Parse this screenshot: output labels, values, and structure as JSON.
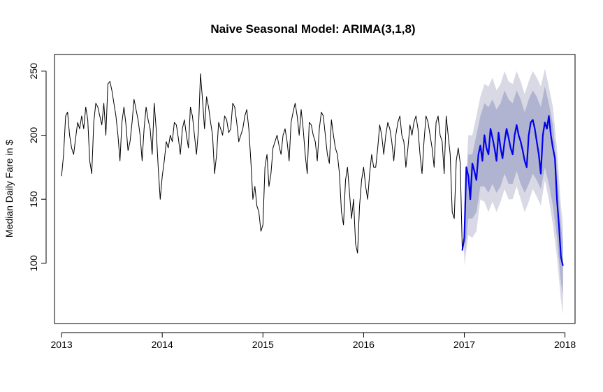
{
  "chart_data": {
    "type": "line",
    "title": "Naive Seasonal Model: ARIMA(3,1,8)",
    "xlabel": "",
    "ylabel": "Median Daily Fare in $",
    "xlim": [
      2012.93,
      2018.1
    ],
    "ylim": [
      53,
      263
    ],
    "x_ticks": [
      2013,
      2014,
      2015,
      2016,
      2017,
      2018
    ],
    "x_tick_labels": [
      "2013",
      "2014",
      "2015",
      "2016",
      "2017",
      "2018"
    ],
    "y_ticks": [
      100,
      150,
      200,
      250
    ],
    "y_tick_labels": [
      "100",
      "150",
      "200",
      "250"
    ],
    "grid": false,
    "legend": "none",
    "colors": {
      "history": "#000000",
      "forecast": "#0000ee",
      "band80": "#b0b4d0",
      "band95": "#d8d9e4"
    },
    "series": [
      {
        "kind": "history",
        "x": [
          2013.0,
          2013.02,
          2013.04,
          2013.06,
          2013.08,
          2013.1,
          2013.12,
          2013.14,
          2013.16,
          2013.18,
          2013.2,
          2013.22,
          2013.24,
          2013.26,
          2013.28,
          2013.3,
          2013.32,
          2013.34,
          2013.36,
          2013.38,
          2013.4,
          2013.42,
          2013.44,
          2013.46,
          2013.48,
          2013.5,
          2013.52,
          2013.54,
          2013.56,
          2013.58,
          2013.6,
          2013.62,
          2013.64,
          2013.66,
          2013.68,
          2013.7,
          2013.72,
          2013.74,
          2013.76,
          2013.78,
          2013.8,
          2013.82,
          2013.84,
          2013.86,
          2013.88,
          2013.9,
          2013.92,
          2013.94,
          2013.96,
          2013.98,
          2014.0,
          2014.02,
          2014.04,
          2014.06,
          2014.08,
          2014.1,
          2014.12,
          2014.14,
          2014.16,
          2014.18,
          2014.2,
          2014.22,
          2014.24,
          2014.26,
          2014.28,
          2014.3,
          2014.32,
          2014.34,
          2014.36,
          2014.38,
          2014.4,
          2014.42,
          2014.44,
          2014.46,
          2014.48,
          2014.5,
          2014.52,
          2014.54,
          2014.56,
          2014.58,
          2014.6,
          2014.62,
          2014.64,
          2014.66,
          2014.68,
          2014.7,
          2014.72,
          2014.74,
          2014.76,
          2014.78,
          2014.8,
          2014.82,
          2014.84,
          2014.86,
          2014.88,
          2014.9,
          2014.92,
          2014.94,
          2014.96,
          2014.98,
          2015.0,
          2015.02,
          2015.04,
          2015.06,
          2015.08,
          2015.1,
          2015.12,
          2015.14,
          2015.16,
          2015.18,
          2015.2,
          2015.22,
          2015.24,
          2015.26,
          2015.28,
          2015.3,
          2015.32,
          2015.34,
          2015.36,
          2015.38,
          2015.4,
          2015.42,
          2015.44,
          2015.46,
          2015.48,
          2015.5,
          2015.52,
          2015.54,
          2015.56,
          2015.58,
          2015.6,
          2015.62,
          2015.64,
          2015.66,
          2015.68,
          2015.7,
          2015.72,
          2015.74,
          2015.76,
          2015.78,
          2015.8,
          2015.82,
          2015.84,
          2015.86,
          2015.88,
          2015.9,
          2015.92,
          2015.94,
          2015.96,
          2015.98,
          2016.0,
          2016.02,
          2016.04,
          2016.06,
          2016.08,
          2016.1,
          2016.12,
          2016.14,
          2016.16,
          2016.18,
          2016.2,
          2016.22,
          2016.24,
          2016.26,
          2016.28,
          2016.3,
          2016.32,
          2016.34,
          2016.36,
          2016.38,
          2016.4,
          2016.42,
          2016.44,
          2016.46,
          2016.48,
          2016.5,
          2016.52,
          2016.54,
          2016.56,
          2016.58,
          2016.6,
          2016.62,
          2016.64,
          2016.66,
          2016.68,
          2016.7,
          2016.72,
          2016.74,
          2016.76,
          2016.78,
          2016.8,
          2016.82,
          2016.84,
          2016.86,
          2016.88,
          2016.9,
          2016.92,
          2016.94,
          2016.96,
          2016.98
        ],
        "y": [
          168,
          185,
          215,
          218,
          200,
          190,
          185,
          198,
          210,
          205,
          215,
          205,
          222,
          212,
          180,
          170,
          210,
          225,
          222,
          215,
          208,
          225,
          200,
          240,
          242,
          235,
          225,
          215,
          200,
          180,
          210,
          222,
          208,
          188,
          195,
          210,
          228,
          220,
          212,
          200,
          180,
          205,
          222,
          212,
          205,
          185,
          225,
          205,
          175,
          150,
          168,
          180,
          195,
          190,
          200,
          195,
          210,
          208,
          198,
          185,
          205,
          212,
          200,
          190,
          222,
          215,
          200,
          185,
          205,
          248,
          228,
          205,
          230,
          222,
          210,
          200,
          170,
          185,
          210,
          205,
          200,
          215,
          212,
          202,
          205,
          225,
          222,
          210,
          195,
          200,
          205,
          215,
          220,
          205,
          180,
          150,
          160,
          145,
          140,
          125,
          130,
          175,
          185,
          160,
          170,
          190,
          195,
          200,
          192,
          185,
          200,
          205,
          195,
          180,
          210,
          218,
          225,
          215,
          200,
          220,
          205,
          185,
          170,
          210,
          208,
          200,
          195,
          180,
          205,
          218,
          215,
          200,
          185,
          178,
          212,
          200,
          190,
          185,
          170,
          140,
          130,
          165,
          175,
          155,
          135,
          150,
          115,
          108,
          145,
          165,
          175,
          160,
          150,
          170,
          185,
          175,
          175,
          190,
          208,
          200,
          185,
          200,
          210,
          205,
          195,
          180,
          200,
          210,
          215,
          200,
          195,
          175,
          190,
          208,
          200,
          210,
          215,
          205,
          185,
          170,
          195,
          215,
          210,
          200,
          190,
          175,
          210,
          215,
          200,
          195,
          170,
          215,
          200,
          185,
          140,
          135,
          180,
          190,
          178,
          110
        ]
      },
      {
        "kind": "forecast",
        "x": [
          2016.98,
          2017.0,
          2017.02,
          2017.04,
          2017.06,
          2017.08,
          2017.1,
          2017.12,
          2017.14,
          2017.16,
          2017.18,
          2017.2,
          2017.22,
          2017.24,
          2017.26,
          2017.28,
          2017.3,
          2017.32,
          2017.34,
          2017.36,
          2017.38,
          2017.4,
          2017.42,
          2017.44,
          2017.46,
          2017.48,
          2017.5,
          2017.52,
          2017.54,
          2017.56,
          2017.58,
          2017.6,
          2017.62,
          2017.64,
          2017.66,
          2017.68,
          2017.7,
          2017.72,
          2017.74,
          2017.76,
          2017.78,
          2017.8,
          2017.82,
          2017.84,
          2017.86,
          2017.88,
          2017.9,
          2017.92,
          2017.94,
          2017.96,
          2017.98
        ],
        "y": [
          110,
          120,
          175,
          168,
          150,
          178,
          172,
          165,
          185,
          192,
          180,
          200,
          190,
          185,
          205,
          198,
          190,
          180,
          202,
          190,
          182,
          195,
          205,
          198,
          190,
          185,
          200,
          208,
          200,
          195,
          188,
          180,
          175,
          200,
          210,
          212,
          205,
          195,
          185,
          170,
          200,
          210,
          205,
          215,
          200,
          190,
          182,
          150,
          130,
          105,
          98
        ]
      }
    ],
    "bands": {
      "x": [
        2017.0,
        2017.04,
        2017.08,
        2017.12,
        2017.16,
        2017.2,
        2017.24,
        2017.28,
        2017.32,
        2017.36,
        2017.4,
        2017.44,
        2017.48,
        2017.52,
        2017.56,
        2017.6,
        2017.64,
        2017.68,
        2017.72,
        2017.76,
        2017.8,
        2017.84,
        2017.88,
        2017.92,
        2017.96,
        2017.98
      ],
      "lo95": [
        98,
        122,
        120,
        125,
        150,
        148,
        140,
        148,
        140,
        148,
        158,
        150,
        150,
        160,
        150,
        140,
        148,
        158,
        152,
        145,
        165,
        150,
        130,
        105,
        72,
        60
      ],
      "lo80": [
        105,
        135,
        135,
        140,
        160,
        160,
        155,
        162,
        155,
        160,
        170,
        162,
        162,
        172,
        162,
        155,
        162,
        170,
        165,
        158,
        175,
        162,
        145,
        120,
        85,
        75
      ],
      "hi80": [
        135,
        185,
        185,
        200,
        215,
        225,
        222,
        228,
        220,
        225,
        235,
        228,
        225,
        235,
        228,
        218,
        228,
        235,
        230,
        222,
        238,
        225,
        208,
        175,
        130,
        115
      ],
      "hi95": [
        145,
        200,
        200,
        215,
        230,
        240,
        238,
        245,
        235,
        240,
        250,
        242,
        240,
        250,
        242,
        232,
        242,
        250,
        245,
        238,
        252,
        238,
        222,
        190,
        145,
        130
      ]
    }
  }
}
